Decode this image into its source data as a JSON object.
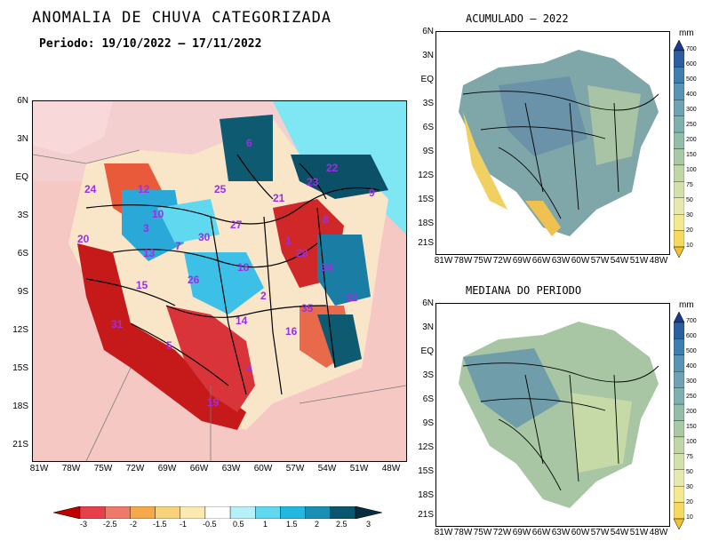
{
  "main": {
    "title": "ANOMALIA DE CHUVA CATEGORIZADA",
    "period": "Periodo: 19/10/2022 – 17/11/2022",
    "lat_labels": [
      "6N",
      "3N",
      "EQ",
      "3S",
      "6S",
      "9S",
      "12S",
      "15S",
      "18S",
      "21S"
    ],
    "lon_labels": [
      "81W",
      "78W",
      "75W",
      "72W",
      "69W",
      "66W",
      "63W",
      "60W",
      "57W",
      "54W",
      "51W",
      "48W"
    ],
    "basin_labels": [
      "6",
      "22",
      "23",
      "25",
      "24",
      "12",
      "21",
      "10",
      "8",
      "3",
      "27",
      "1",
      "30",
      "13",
      "28",
      "20",
      "7",
      "18",
      "34",
      "26",
      "15",
      "2",
      "32",
      "35",
      "31",
      "14",
      "16",
      "5",
      "4",
      "19",
      "9"
    ],
    "colorbar_labels": [
      "-3",
      "-2.5",
      "-2",
      "-1.5",
      "-1",
      "-0.5",
      "0.5",
      "1",
      "1.5",
      "2",
      "2.5",
      "3"
    ],
    "colorbar_colors": [
      "#c00000",
      "#e8404a",
      "#f07a6a",
      "#f4a94a",
      "#f8d27a",
      "#fbeab0",
      "#ffffff",
      "#b8f0f8",
      "#5fd8f0",
      "#22b8e0",
      "#1a8fb4",
      "#0b5570",
      "#062d40"
    ]
  },
  "top_right": {
    "title": "ACUMULADO – 2022",
    "lat_labels": [
      "6N",
      "3N",
      "EQ",
      "3S",
      "6S",
      "9S",
      "12S",
      "15S",
      "18S",
      "21S"
    ],
    "lon_labels": [
      "81W",
      "78W",
      "75W",
      "72W",
      "69W",
      "66W",
      "63W",
      "60W",
      "57W",
      "54W",
      "51W",
      "48W"
    ]
  },
  "bottom_right": {
    "title": "MEDIANA DO PERIODO",
    "lat_labels": [
      "6N",
      "3N",
      "EQ",
      "3S",
      "6S",
      "9S",
      "12S",
      "15S",
      "18S",
      "21S"
    ],
    "lon_labels": [
      "81W",
      "78W",
      "75W",
      "72W",
      "69W",
      "66W",
      "63W",
      "60W",
      "57W",
      "54W",
      "51W",
      "48W"
    ]
  },
  "mm_colorbar": {
    "unit": "mm",
    "labels": [
      "700",
      "600",
      "500",
      "400",
      "300",
      "250",
      "200",
      "150",
      "100",
      "75",
      "50",
      "30",
      "20",
      "10"
    ],
    "colors": [
      "#1b3a8c",
      "#2d5fa0",
      "#3f7fae",
      "#5a93b4",
      "#6fa2b2",
      "#7fb0ae",
      "#93bda8",
      "#a8c9a4",
      "#bfd6a6",
      "#d2e0aa",
      "#e6e8b0",
      "#f4e890",
      "#f7d860",
      "#f4c030"
    ]
  }
}
